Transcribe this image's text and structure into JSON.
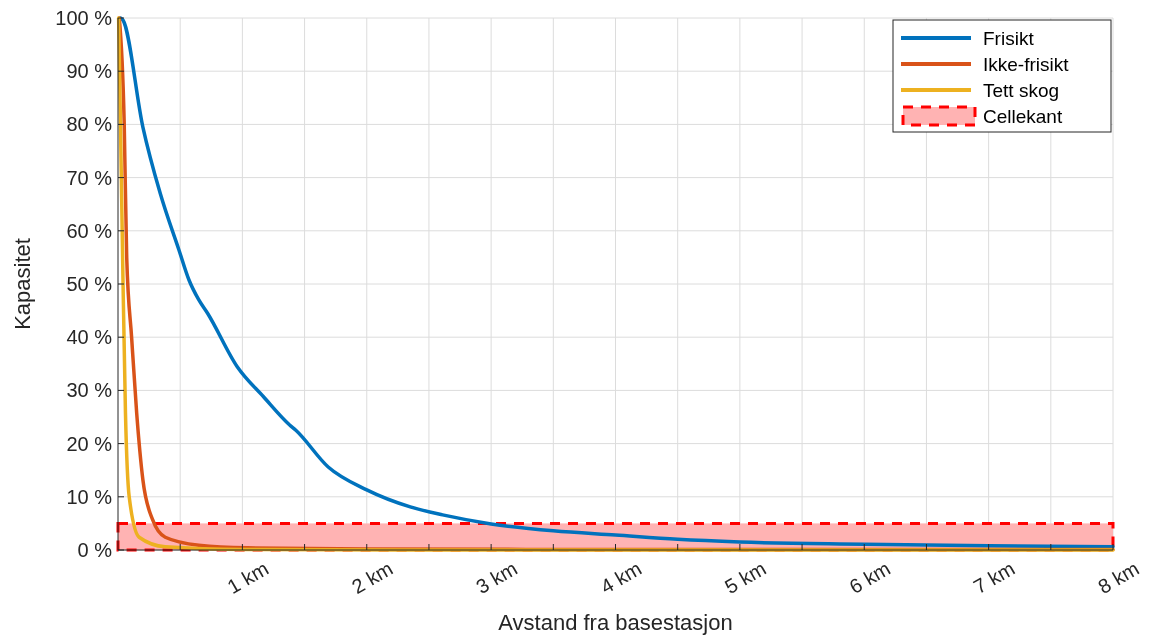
{
  "chart_data": {
    "type": "line",
    "xlabel": "Avstand fra basestasjon",
    "ylabel": "Kapasitet",
    "xlim": [
      0,
      8
    ],
    "ylim": [
      0,
      100
    ],
    "xticks": [
      {
        "value": 0.5,
        "label": null
      },
      {
        "value": 1,
        "label": "1 km"
      },
      {
        "value": 1.5,
        "label": null
      },
      {
        "value": 2,
        "label": "2 km"
      },
      {
        "value": 2.5,
        "label": null
      },
      {
        "value": 3,
        "label": "3 km"
      },
      {
        "value": 3.5,
        "label": null
      },
      {
        "value": 4,
        "label": "4 km"
      },
      {
        "value": 4.5,
        "label": null
      },
      {
        "value": 5,
        "label": "5 km"
      },
      {
        "value": 5.5,
        "label": null
      },
      {
        "value": 6,
        "label": "6 km"
      },
      {
        "value": 6.5,
        "label": null
      },
      {
        "value": 7,
        "label": "7 km"
      },
      {
        "value": 7.5,
        "label": null
      },
      {
        "value": 8,
        "label": "8 km"
      }
    ],
    "yticks": [
      {
        "value": 0,
        "label": "0 %"
      },
      {
        "value": 10,
        "label": "10 %"
      },
      {
        "value": 20,
        "label": "20 %"
      },
      {
        "value": 30,
        "label": "30 %"
      },
      {
        "value": 40,
        "label": "40 %"
      },
      {
        "value": 50,
        "label": "50 %"
      },
      {
        "value": 60,
        "label": "60 %"
      },
      {
        "value": 70,
        "label": "70 %"
      },
      {
        "value": 80,
        "label": "80 %"
      },
      {
        "value": 90,
        "label": "90 %"
      },
      {
        "value": 100,
        "label": "100 %"
      }
    ],
    "grid": true,
    "legend": "top right",
    "line_style": "solid",
    "series": [
      {
        "name": "Frisikt",
        "color": "#0072bd",
        "x": [
          0.02,
          0.04,
          0.2,
          0.34,
          0.49,
          0.57,
          0.65,
          0.72,
          0.96,
          1.17,
          1.38,
          1.43,
          1.69,
          2.0,
          2.35,
          2.61,
          3.0,
          3.5,
          4.0,
          4.5,
          5.0,
          6.0,
          7.0,
          8.0
        ],
        "values": [
          100,
          99.6,
          79.5,
          67,
          56.4,
          50.8,
          47,
          44.5,
          34.4,
          28.8,
          23.5,
          22.5,
          15.6,
          11.3,
          8.1,
          6.6,
          4.9,
          3.6,
          2.8,
          2.0,
          1.5,
          1.1,
          0.8,
          0.6
        ]
      },
      {
        "name": "Ikke-frisikt",
        "color": "#d95319",
        "x": [
          0.01,
          0.05,
          0.07,
          0.11,
          0.15,
          0.2,
          0.28,
          0.38,
          0.65,
          1.04,
          2.0,
          4.0,
          8.0
        ],
        "values": [
          100,
          80,
          55,
          39.8,
          25.8,
          13.2,
          5.6,
          2.4,
          0.9,
          0.4,
          0.2,
          0.1,
          0.1
        ]
      },
      {
        "name": "Tett skog",
        "color": "#edb120",
        "x": [
          0.005,
          0.02,
          0.04,
          0.06,
          0.09,
          0.17,
          0.38,
          1.0,
          3.0,
          8.0
        ],
        "values": [
          100,
          80,
          50.8,
          25.8,
          10,
          2.4,
          0.6,
          0.1,
          0,
          0
        ]
      }
    ],
    "bands": [
      {
        "axis": "y",
        "from": 0,
        "to": 5,
        "label": "Cellekant",
        "color": "#ffb3b3"
      }
    ]
  }
}
